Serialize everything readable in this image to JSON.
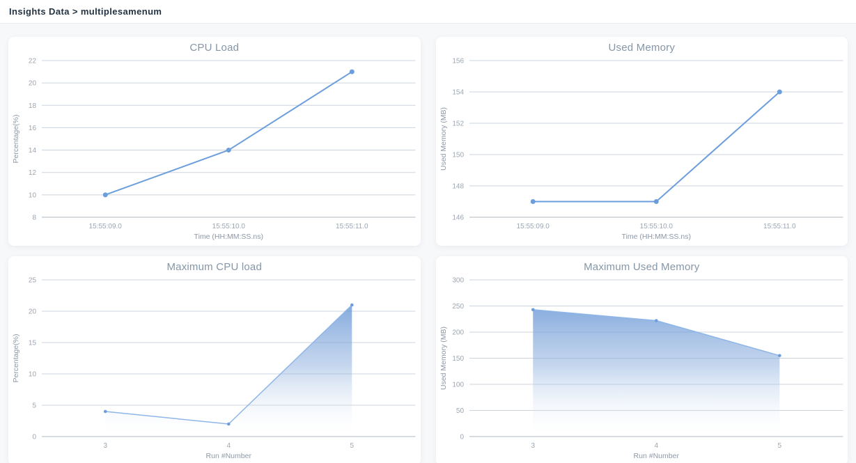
{
  "header": {
    "breadcrumb": "Insights Data > multiplesamenum"
  },
  "colors": {
    "line": "#6d9edc",
    "area_line": "#8fb6e8",
    "area_fill_top": "#5b8fd3",
    "area_fill_mid": "#8caedd",
    "grid": "#ccd3db",
    "axis": "#aeb8c2",
    "tick_label": "#9aa5b2",
    "axis_label": "#8d98a6",
    "title": "#8496a8"
  },
  "chart_data": [
    {
      "type": "line",
      "title": "CPU Load",
      "xlabel": "Time (HH:MM:SS.ns)",
      "ylabel": "Percentage(%)",
      "categories": [
        "15:55:09.0",
        "15:55:10.0",
        "15:55:11.0"
      ],
      "values": [
        10,
        14,
        21
      ],
      "ylim": [
        8,
        22
      ],
      "ytick_step": 2,
      "grid": "on",
      "legend": "none"
    },
    {
      "type": "line",
      "title": "Used Memory",
      "xlabel": "Time (HH:MM:SS.ns)",
      "ylabel": "Used Memory (MB)",
      "categories": [
        "15:55:09.0",
        "15:55:10.0",
        "15:55:11.0"
      ],
      "values": [
        147,
        147,
        154
      ],
      "ylim": [
        146,
        156
      ],
      "ytick_step": 2,
      "grid": "on",
      "legend": "none"
    },
    {
      "type": "area",
      "title": "Maximum CPU load",
      "xlabel": "Run #Number",
      "ylabel": "Percentage(%)",
      "categories": [
        "3",
        "4",
        "5"
      ],
      "values": [
        4,
        2,
        21
      ],
      "ylim": [
        0,
        25
      ],
      "ytick_step": 5,
      "grid": "on",
      "legend": "none"
    },
    {
      "type": "area",
      "title": "Maximum Used Memory",
      "xlabel": "Run #Number",
      "ylabel": "Used Memory (MB)",
      "categories": [
        "3",
        "4",
        "5"
      ],
      "values": [
        243,
        222,
        155
      ],
      "ylim": [
        0,
        300
      ],
      "ytick_step": 50,
      "grid": "on",
      "legend": "none"
    }
  ]
}
